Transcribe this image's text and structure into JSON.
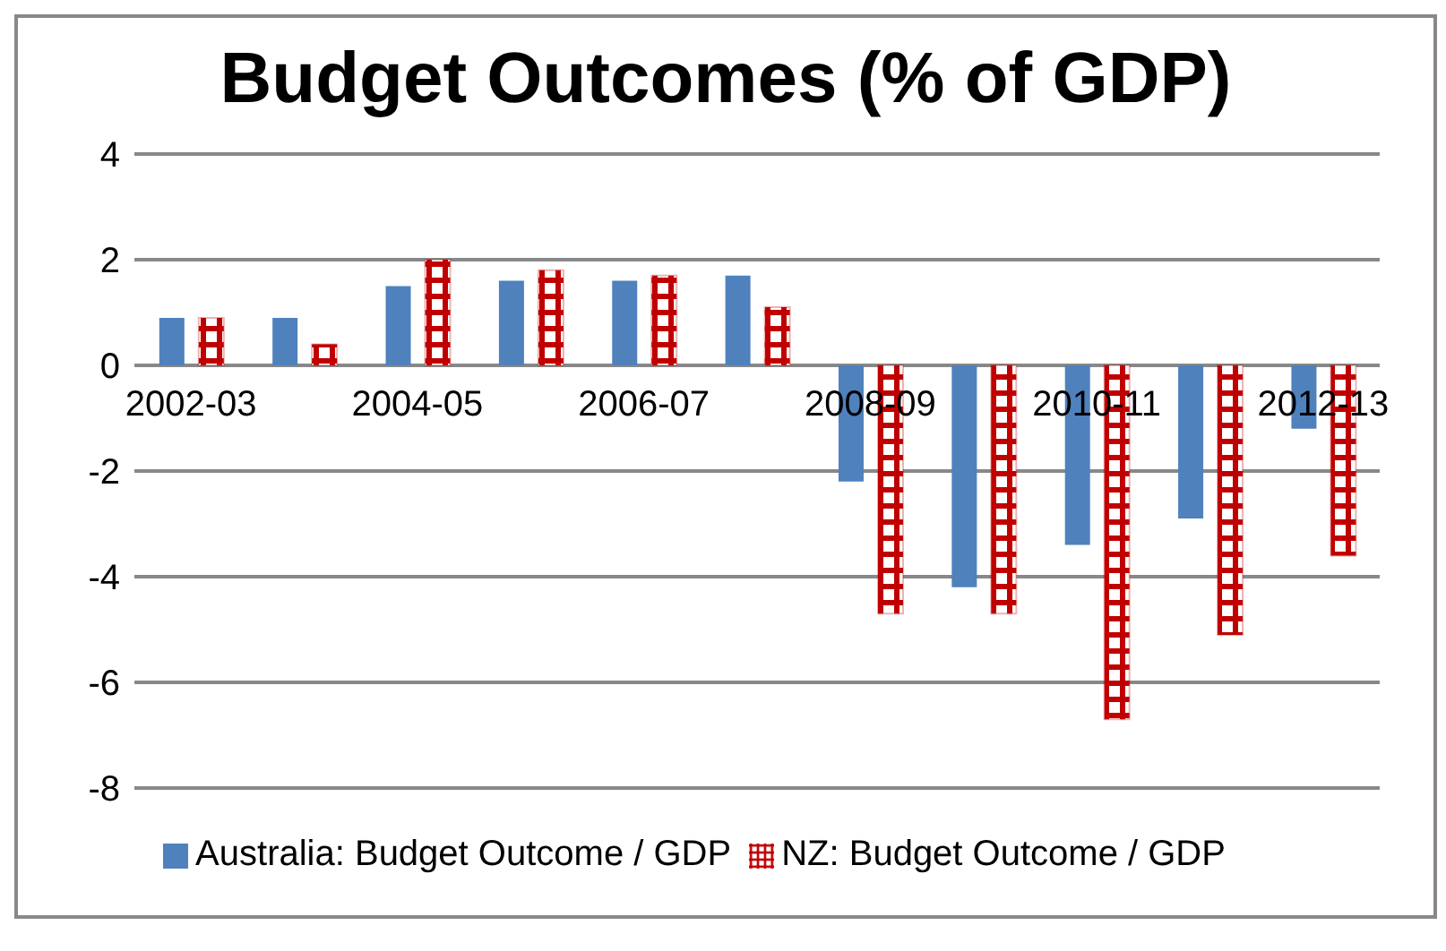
{
  "chart_data": {
    "type": "bar",
    "title": "Budget Outcomes (% of GDP)",
    "categories": [
      "2002-03",
      null,
      "2004-05",
      null,
      "2006-07",
      null,
      "2008-09",
      null,
      "2010-11",
      null,
      "2012-13"
    ],
    "series": [
      {
        "name": "Australia: Budget Outcome / GDP",
        "color": "#4f81bd",
        "values": [
          0.9,
          0.9,
          1.5,
          1.6,
          1.6,
          1.7,
          -2.2,
          -4.2,
          -3.4,
          -2.9,
          -1.2
        ]
      },
      {
        "name": "NZ: Budget Outcome / GDP",
        "color": "#c00000",
        "values": [
          0.9,
          0.4,
          2.0,
          1.8,
          1.7,
          1.1,
          -4.7,
          -4.7,
          -6.7,
          -5.1,
          -3.6
        ]
      }
    ],
    "ylim": [
      -8,
      4
    ],
    "yticks": [
      -8,
      -6,
      -4,
      -2,
      0,
      2,
      4
    ],
    "grid": "y",
    "legend": "bottom"
  }
}
